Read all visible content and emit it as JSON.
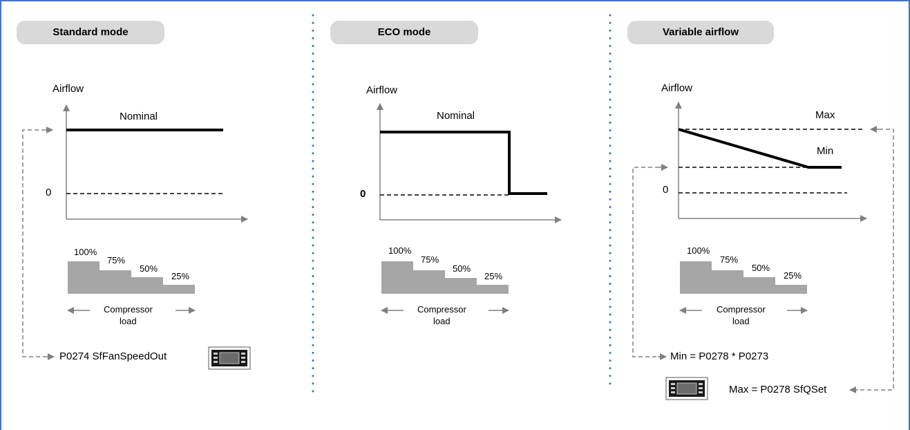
{
  "panels": [
    {
      "title": "Standard mode",
      "y_axis_label": "Airflow",
      "curve_label": "Nominal",
      "zero_label": "0",
      "load_steps": [
        "100%",
        "75%",
        "50%",
        "25%"
      ],
      "load_caption_line1": "Compressor",
      "load_caption_line2": "load",
      "parameter_text": "P0274 SfFanSpeedOut"
    },
    {
      "title": "ECO mode",
      "y_axis_label": "Airflow",
      "curve_label": "Nominal",
      "zero_label": "0",
      "load_steps": [
        "100%",
        "75%",
        "50%",
        "25%"
      ],
      "load_caption_line1": "Compressor",
      "load_caption_line2": "load"
    },
    {
      "title": "Variable airflow",
      "y_axis_label": "Airflow",
      "max_label": "Max",
      "min_label": "Min",
      "zero_label": "0",
      "load_steps": [
        "100%",
        "75%",
        "50%",
        "25%"
      ],
      "load_caption_line1": "Compressor",
      "load_caption_line2": "load",
      "min_formula": "Min = P0278 * P0273",
      "max_formula": "Max =  P0278 SfQSet"
    }
  ],
  "colors": {
    "frame_border": "#4472c4",
    "divider_dots": "#4472c4",
    "title_pill": "#d9d9d9",
    "axis": "#808080",
    "load_bars": "#a6a6a6",
    "dashed_connector": "#808080"
  },
  "icons": [
    "controller-device-icon"
  ]
}
